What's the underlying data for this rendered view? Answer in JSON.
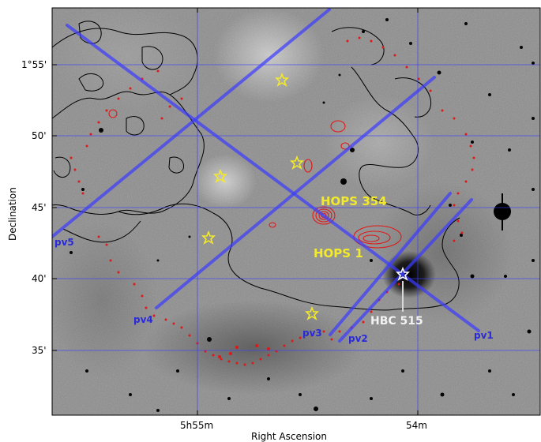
{
  "axes": {
    "xlabel": "Right Ascension",
    "ylabel": "Declination",
    "xticks": [
      "5h55m",
      "54m"
    ],
    "yticks": [
      "1°55'",
      "50'",
      "45'",
      "40'",
      "35'"
    ]
  },
  "annotations": {
    "hops354": "HOPS 354",
    "hops1": "HOPS 1",
    "hbc515": "HBC 515"
  },
  "pv_cuts": [
    "pv1",
    "pv2",
    "pv3",
    "pv4",
    "pv5"
  ],
  "colors": {
    "grid": "#3a3aff",
    "pv_line": "#3b3bff",
    "contour_red": "#e01818",
    "contour_black": "#000000",
    "star_marker": "#f2ea2a",
    "hbc_marker": "#ffffff"
  }
}
